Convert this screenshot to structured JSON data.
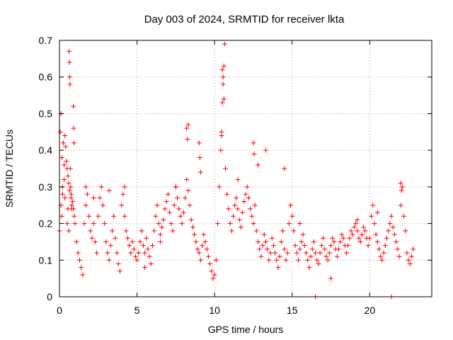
{
  "chart_data": {
    "type": "scatter",
    "title": "Day 003 of 2024, SRMTID for receiver lkta",
    "xlabel": "GPS time / hours",
    "ylabel": "SRMTID / TECUs",
    "xlim": [
      0,
      24
    ],
    "ylim": [
      0,
      0.7
    ],
    "xticks": [
      0,
      5,
      10,
      15,
      20
    ],
    "yticks": [
      0,
      0.1,
      0.2,
      0.3,
      0.4,
      0.5,
      0.6,
      0.7
    ],
    "xtick_labels": [
      "0",
      "5",
      "10",
      "15",
      "20"
    ],
    "ytick_labels": [
      "0",
      "0.1",
      "0.2",
      "0.3",
      "0.4",
      "0.5",
      "0.6",
      "0.7"
    ],
    "grid": true,
    "marker": "+",
    "color": "#ff0000",
    "series": [
      {
        "name": "SRMTID",
        "x": [
          0.0,
          0.05,
          0.1,
          0.15,
          0.2,
          0.25,
          0.3,
          0.35,
          0.4,
          0.45,
          0.5,
          0.55,
          0.6,
          0.65,
          0.7,
          0.75,
          0.8,
          0.85,
          0.9,
          0.95,
          1.0,
          0.62,
          0.64,
          0.66,
          0.68,
          0.9,
          0.92,
          0.94,
          0.1,
          0.15,
          0.2,
          0.3,
          0.35,
          0.5,
          0.55,
          0.6,
          0.72,
          0.75,
          0.78,
          1.1,
          1.2,
          1.3,
          1.4,
          1.5,
          1.6,
          1.7,
          1.8,
          1.9,
          2.0,
          2.1,
          2.2,
          2.3,
          2.4,
          2.5,
          2.6,
          2.7,
          2.8,
          2.9,
          3.0,
          3.1,
          3.2,
          3.3,
          3.4,
          3.5,
          3.6,
          3.7,
          3.8,
          3.9,
          4.0,
          4.1,
          4.2,
          4.3,
          4.4,
          4.5,
          4.6,
          4.7,
          4.8,
          4.9,
          5.0,
          5.1,
          5.2,
          5.3,
          5.4,
          5.5,
          5.6,
          5.7,
          5.8,
          5.9,
          6.0,
          6.1,
          6.2,
          6.3,
          6.4,
          6.5,
          6.6,
          6.7,
          6.8,
          6.9,
          7.0,
          7.1,
          7.2,
          7.3,
          7.4,
          7.5,
          7.6,
          7.7,
          7.8,
          7.9,
          8.0,
          8.1,
          8.2,
          8.3,
          8.4,
          8.5,
          8.6,
          8.7,
          8.8,
          8.9,
          9.0,
          9.1,
          9.2,
          9.3,
          9.4,
          9.5,
          9.6,
          9.7,
          9.8,
          9.9,
          10.0,
          10.1,
          10.2,
          10.3,
          10.4,
          10.45,
          10.5,
          10.55,
          10.6,
          10.65,
          10.7,
          10.8,
          10.9,
          11.0,
          11.1,
          11.2,
          11.3,
          11.4,
          11.5,
          11.6,
          11.7,
          11.8,
          11.9,
          12.0,
          12.1,
          12.2,
          12.3,
          12.4,
          12.5,
          12.6,
          12.7,
          12.8,
          12.9,
          13.0,
          13.1,
          13.2,
          13.3,
          13.4,
          13.5,
          13.6,
          13.7,
          13.8,
          13.9,
          14.0,
          14.1,
          14.2,
          14.3,
          14.4,
          14.5,
          14.6,
          14.7,
          14.8,
          14.9,
          15.0,
          15.1,
          15.2,
          15.3,
          15.4,
          15.5,
          15.6,
          15.7,
          15.8,
          15.9,
          16.0,
          16.1,
          16.2,
          16.3,
          16.4,
          16.5,
          16.6,
          16.7,
          16.8,
          16.9,
          17.0,
          17.1,
          17.2,
          17.3,
          17.4,
          17.5,
          17.6,
          17.7,
          17.8,
          17.9,
          18.0,
          18.1,
          18.2,
          18.3,
          18.4,
          18.5,
          18.6,
          18.7,
          18.8,
          18.9,
          19.0,
          19.1,
          19.2,
          19.3,
          19.4,
          19.5,
          19.6,
          19.7,
          19.8,
          19.9,
          20.0,
          20.1,
          20.2,
          20.3,
          20.4,
          20.5,
          20.6,
          20.7,
          20.8,
          20.9,
          21.0,
          21.1,
          21.2,
          21.3,
          21.4,
          21.5,
          21.6,
          21.7,
          21.8,
          21.9,
          22.0,
          22.1,
          22.2,
          22.3,
          22.4,
          22.5,
          22.6,
          22.7,
          22.8,
          8.2,
          8.25,
          8.3,
          9.0,
          9.05,
          9.1,
          10.45,
          10.5,
          10.55,
          10.6,
          12.5,
          12.55,
          13.3,
          14.5,
          16.5,
          21.4,
          22.0,
          22.05,
          1.7,
          2.2,
          3.2,
          4.2,
          5.5,
          6.5,
          7.5,
          11.5,
          12.8,
          15.5,
          17.5,
          19.2,
          20.5
        ],
        "y": [
          0.18,
          0.45,
          0.5,
          0.38,
          0.3,
          0.42,
          0.36,
          0.44,
          0.41,
          0.37,
          0.35,
          0.33,
          0.31,
          0.29,
          0.35,
          0.28,
          0.25,
          0.26,
          0.24,
          0.22,
          0.2,
          0.67,
          0.64,
          0.6,
          0.58,
          0.52,
          0.46,
          0.42,
          0.25,
          0.22,
          0.28,
          0.32,
          0.27,
          0.2,
          0.24,
          0.18,
          0.3,
          0.27,
          0.24,
          0.15,
          0.12,
          0.1,
          0.08,
          0.06,
          0.2,
          0.25,
          0.28,
          0.22,
          0.18,
          0.16,
          0.2,
          0.15,
          0.12,
          0.22,
          0.27,
          0.3,
          0.25,
          0.2,
          0.15,
          0.12,
          0.1,
          0.14,
          0.18,
          0.22,
          0.16,
          0.12,
          0.09,
          0.07,
          0.25,
          0.28,
          0.22,
          0.18,
          0.16,
          0.14,
          0.12,
          0.15,
          0.13,
          0.11,
          0.1,
          0.12,
          0.15,
          0.18,
          0.14,
          0.12,
          0.16,
          0.13,
          0.11,
          0.09,
          0.14,
          0.18,
          0.22,
          0.25,
          0.2,
          0.17,
          0.19,
          0.21,
          0.24,
          0.26,
          0.28,
          0.23,
          0.2,
          0.18,
          0.25,
          0.3,
          0.27,
          0.24,
          0.22,
          0.2,
          0.23,
          0.27,
          0.32,
          0.29,
          0.25,
          0.21,
          0.19,
          0.17,
          0.15,
          0.13,
          0.12,
          0.1,
          0.14,
          0.17,
          0.15,
          0.13,
          0.11,
          0.09,
          0.07,
          0.05,
          0.06,
          0.1,
          0.2,
          0.3,
          0.4,
          0.45,
          0.53,
          0.6,
          0.63,
          0.69,
          0.35,
          0.28,
          0.24,
          0.2,
          0.18,
          0.22,
          0.25,
          0.27,
          0.24,
          0.21,
          0.19,
          0.23,
          0.26,
          0.28,
          0.3,
          0.27,
          0.24,
          0.22,
          0.2,
          0.25,
          0.18,
          0.15,
          0.13,
          0.11,
          0.14,
          0.17,
          0.15,
          0.13,
          0.1,
          0.12,
          0.16,
          0.14,
          0.12,
          0.1,
          0.08,
          0.11,
          0.15,
          0.18,
          0.13,
          0.1,
          0.12,
          0.2,
          0.25,
          0.22,
          0.18,
          0.14,
          0.12,
          0.1,
          0.13,
          0.15,
          0.17,
          0.14,
          0.12,
          0.1,
          0.08,
          0.11,
          0.13,
          0.15,
          0.12,
          0.1,
          0.09,
          0.12,
          0.14,
          0.16,
          0.13,
          0.11,
          0.1,
          0.12,
          0.14,
          0.16,
          0.15,
          0.13,
          0.11,
          0.13,
          0.15,
          0.17,
          0.16,
          0.14,
          0.12,
          0.14,
          0.16,
          0.18,
          0.17,
          0.19,
          0.2,
          0.18,
          0.16,
          0.15,
          0.17,
          0.19,
          0.18,
          0.16,
          0.14,
          0.16,
          0.22,
          0.25,
          0.2,
          0.17,
          0.15,
          0.13,
          0.11,
          0.1,
          0.12,
          0.14,
          0.16,
          0.18,
          0.2,
          0.22,
          0.19,
          0.17,
          0.15,
          0.13,
          0.11,
          0.25,
          0.3,
          0.22,
          0.18,
          0.12,
          0.1,
          0.09,
          0.11,
          0.13,
          0.46,
          0.43,
          0.47,
          0.42,
          0.38,
          0.34,
          0.44,
          0.62,
          0.58,
          0.54,
          0.42,
          0.39,
          0.4,
          0.35,
          0.0,
          0.0,
          0.31,
          0.29,
          0.3,
          0.27,
          0.29,
          0.3,
          0.08,
          0.15,
          0.3,
          0.32,
          0.36,
          0.2,
          0.05,
          0.21,
          0.23
        ]
      }
    ]
  }
}
